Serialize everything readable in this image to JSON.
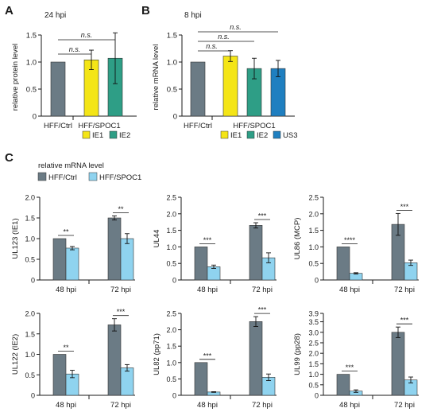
{
  "colors": {
    "ctrl": "#6b7b85",
    "yellow": "#f4e516",
    "green": "#2e9e86",
    "blue": "#1f7fc0",
    "light_blue": "#8fd3ef",
    "axis": "#1a1a1a"
  },
  "panel_labels": {
    "a": "A",
    "b": "B",
    "c": "C"
  },
  "chart_data": [
    {
      "id": "A",
      "type": "bar",
      "title": "24 hpi",
      "ylabel": "relative protein level",
      "ylim": [
        0,
        1.5
      ],
      "yticks": [
        "0",
        "0.5",
        "1.0",
        "1.5"
      ],
      "groups": [
        "HFF/Ctrl",
        "HFF/SPOC1"
      ],
      "bars": [
        {
          "group": "HFF/Ctrl",
          "series": "Ctrl",
          "value": 1.0,
          "err": 0,
          "color": "#6b7b85"
        },
        {
          "group": "HFF/SPOC1",
          "series": "IE1",
          "value": 1.04,
          "err": 0.18,
          "color": "#f4e516"
        },
        {
          "group": "HFF/SPOC1",
          "series": "IE2",
          "value": 1.07,
          "err": 0.47,
          "color": "#2e9e86"
        }
      ],
      "legend": [
        {
          "name": "IE1",
          "color": "#f4e516"
        },
        {
          "name": "IE2",
          "color": "#2e9e86"
        }
      ],
      "annotations": [
        "n.s.",
        "n.s."
      ]
    },
    {
      "id": "B",
      "type": "bar",
      "title": "8 hpi",
      "ylabel": "relative mRNA level",
      "ylim": [
        0,
        1.5
      ],
      "yticks": [
        "0",
        "0.5",
        "1.0",
        "1.5"
      ],
      "groups": [
        "HFF/Ctrl",
        "HFF/SPOC1"
      ],
      "bars": [
        {
          "group": "HFF/Ctrl",
          "series": "Ctrl",
          "value": 1.0,
          "err": 0,
          "color": "#6b7b85"
        },
        {
          "group": "HFF/SPOC1",
          "series": "IE1",
          "value": 1.11,
          "err": 0.1,
          "color": "#f4e516"
        },
        {
          "group": "HFF/SPOC1",
          "series": "IE2",
          "value": 0.88,
          "err": 0.19,
          "color": "#2e9e86"
        },
        {
          "group": "HFF/SPOC1",
          "series": "US3",
          "value": 0.88,
          "err": 0.15,
          "color": "#1f7fc0"
        }
      ],
      "legend": [
        {
          "name": "IE1",
          "color": "#f4e516"
        },
        {
          "name": "IE2",
          "color": "#2e9e86"
        },
        {
          "name": "US3",
          "color": "#1f7fc0"
        }
      ],
      "annotations": [
        "n.s.",
        "n.s.",
        "n.s."
      ]
    },
    {
      "id": "C-header",
      "type": "legend",
      "title": "relative mRNA level",
      "legend": [
        {
          "name": "HFF/Ctrl",
          "color": "#6b7b85"
        },
        {
          "name": "HFF/SPOC1",
          "color": "#8fd3ef"
        }
      ]
    },
    {
      "id": "C1",
      "type": "bar",
      "ylabel": "UL123 (IE1)",
      "ylim": [
        0,
        2.0
      ],
      "yticks": [
        "0",
        "0.5",
        "1.0",
        "1.5",
        "2.0"
      ],
      "categories": [
        "48 hpi",
        "72 hpi"
      ],
      "series": [
        {
          "name": "HFF/Ctrl",
          "values": [
            1.0,
            1.5
          ],
          "errors": [
            0,
            0.05
          ]
        },
        {
          "name": "HFF/SPOC1",
          "values": [
            0.77,
            1.0
          ],
          "errors": [
            0.04,
            0.12
          ]
        }
      ],
      "significance": [
        "**",
        "**"
      ]
    },
    {
      "id": "C2",
      "type": "bar",
      "ylabel": "UL44",
      "ylim": [
        0,
        2.5
      ],
      "yticks": [
        "0",
        "0.5",
        "1.0",
        "1.5",
        "2.0",
        "2.5"
      ],
      "categories": [
        "48 hpi",
        "72 hpi"
      ],
      "series": [
        {
          "name": "HFF/Ctrl",
          "values": [
            1.0,
            1.65
          ],
          "errors": [
            0,
            0.08
          ]
        },
        {
          "name": "HFF/SPOC1",
          "values": [
            0.4,
            0.67
          ],
          "errors": [
            0.05,
            0.15
          ]
        }
      ],
      "significance": [
        "***",
        "***"
      ]
    },
    {
      "id": "C3",
      "type": "bar",
      "ylabel": "UL86 (MCP)",
      "ylim": [
        0,
        2.5
      ],
      "yticks": [
        "0",
        "0.5",
        "1.0",
        "1.5",
        "2.0",
        "2.5"
      ],
      "categories": [
        "48 hpi",
        "72 hpi"
      ],
      "series": [
        {
          "name": "HFF/Ctrl",
          "values": [
            1.0,
            1.68
          ],
          "errors": [
            0,
            0.33
          ]
        },
        {
          "name": "HFF/SPOC1",
          "values": [
            0.2,
            0.52
          ],
          "errors": [
            0.02,
            0.08
          ]
        }
      ],
      "significance": [
        "****",
        "***"
      ]
    },
    {
      "id": "C4",
      "type": "bar",
      "ylabel": "UL122 (IE2)",
      "ylim": [
        0,
        2.0
      ],
      "yticks": [
        "0",
        "0.5",
        "1.0",
        "1.5",
        "2.0"
      ],
      "categories": [
        "48 hpi",
        "72 hpi"
      ],
      "series": [
        {
          "name": "HFF/Ctrl",
          "values": [
            1.0,
            1.72
          ],
          "errors": [
            0,
            0.15
          ]
        },
        {
          "name": "HFF/SPOC1",
          "values": [
            0.52,
            0.67
          ],
          "errors": [
            0.09,
            0.08
          ]
        }
      ],
      "significance": [
        "**",
        "***"
      ]
    },
    {
      "id": "C5",
      "type": "bar",
      "ylabel": "UL82 (pp71)",
      "ylim": [
        0,
        2.5
      ],
      "yticks": [
        "0",
        "0.5",
        "1.0",
        "1.5",
        "2.0",
        "2.5"
      ],
      "categories": [
        "48 hpi",
        "72 hpi"
      ],
      "series": [
        {
          "name": "HFF/Ctrl",
          "values": [
            1.0,
            2.25
          ],
          "errors": [
            0,
            0.15
          ]
        },
        {
          "name": "HFF/SPOC1",
          "values": [
            0.1,
            0.55
          ],
          "errors": [
            0.01,
            0.1
          ]
        }
      ],
      "significance": [
        "***",
        "***"
      ]
    },
    {
      "id": "C6",
      "type": "bar",
      "ylabel": "UL99 (pp28)",
      "ylim": [
        0,
        3.9
      ],
      "yticks": [
        "0",
        "0.5",
        "1.0",
        "1.5",
        "2.0",
        "2.5",
        "3.0",
        "3.5",
        "3.9"
      ],
      "categories": [
        "48 hpi",
        "72 hpi"
      ],
      "series": [
        {
          "name": "HFF/Ctrl",
          "values": [
            1.0,
            3.0
          ],
          "errors": [
            0,
            0.25
          ]
        },
        {
          "name": "HFF/SPOC1",
          "values": [
            0.2,
            0.73
          ],
          "errors": [
            0.06,
            0.14
          ]
        }
      ],
      "significance": [
        "***",
        "***"
      ]
    }
  ]
}
